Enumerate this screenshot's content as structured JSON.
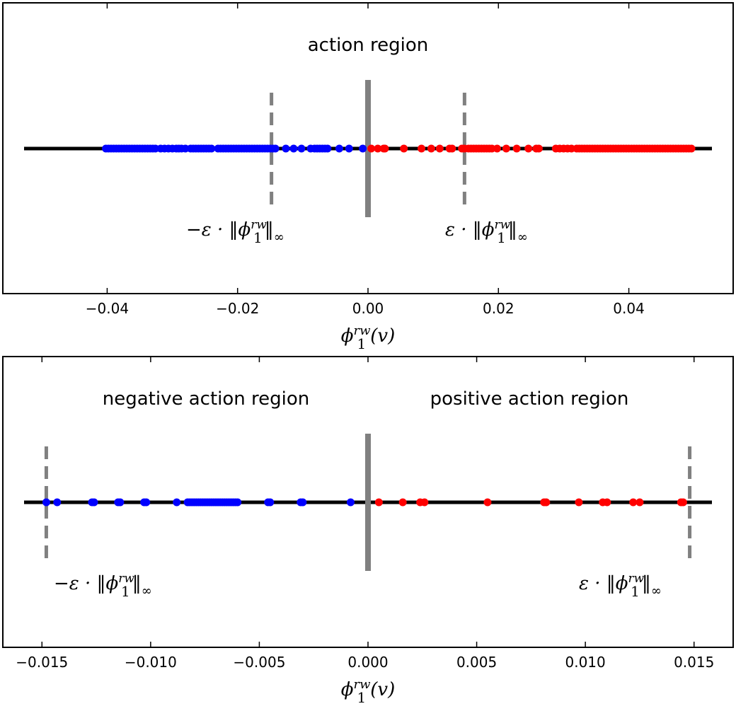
{
  "chart_data": [
    {
      "type": "scatter",
      "xlabel_main": "ϕ",
      "xlabel_sup": "rw",
      "xlabel_sub": "1",
      "xlabel_tail": "(v)",
      "xlim": [
        -0.056,
        0.056
      ],
      "xticks": [
        -0.04,
        -0.02,
        0.0,
        0.02,
        0.04
      ],
      "xtick_labels": [
        "−0.04",
        "−0.02",
        "0.00",
        "0.02",
        "0.04"
      ],
      "annotations": {
        "region_label": "action region",
        "neg_threshold_label": {
          "prefix": "−ε · ‖ϕ",
          "sub": "1",
          "sup": "rw",
          "suffix": "‖",
          "suffix_sub": "∞"
        },
        "pos_threshold_label": {
          "prefix": "ε · ‖ϕ",
          "sub": "1",
          "sup": "rw",
          "suffix": "‖",
          "suffix_sub": "∞"
        }
      },
      "threshold": 0.0148,
      "colors": {
        "negative": "#0000ff",
        "positive": "#ff0000",
        "axis_line": "#000000",
        "threshold": "#808080",
        "zero_line": "#808080"
      },
      "series": [
        {
          "color": "#0000ff",
          "x": [
            -0.0402,
            -0.0398,
            -0.0394,
            -0.039,
            -0.0386,
            -0.0382,
            -0.0378,
            -0.0374,
            -0.037,
            -0.0366,
            -0.0362,
            -0.0358,
            -0.0354,
            -0.035,
            -0.0346,
            -0.0342,
            -0.0338,
            -0.0334,
            -0.033,
            -0.0326,
            -0.0318,
            -0.0312,
            -0.0306,
            -0.03,
            -0.0294,
            -0.029,
            -0.0286,
            -0.028,
            -0.0272,
            -0.0268,
            -0.0264,
            -0.026,
            -0.0256,
            -0.0252,
            -0.0248,
            -0.0244,
            -0.024,
            -0.023,
            -0.0226,
            -0.0222,
            -0.0218,
            -0.0214,
            -0.021,
            -0.0206,
            -0.0202,
            -0.0198,
            -0.0194,
            -0.019,
            -0.0186,
            -0.0182,
            -0.0178,
            -0.0174,
            -0.017,
            -0.0166,
            -0.0162,
            -0.0158,
            -0.0154,
            -0.015,
            -0.0146,
            -0.0142,
            -0.0126,
            -0.0114,
            -0.0102,
            -0.0088,
            -0.0082,
            -0.0078,
            -0.0074,
            -0.007,
            -0.0066,
            -0.0062,
            -0.0044,
            -0.0029,
            -0.0008
          ]
        },
        {
          "color": "#ff0000",
          "x": [
            0.0005,
            0.0015,
            0.0024,
            0.0026,
            0.0055,
            0.0082,
            0.0097,
            0.011,
            0.0125,
            0.0129,
            0.0144,
            0.0148,
            0.0154,
            0.0158,
            0.0162,
            0.0166,
            0.017,
            0.0174,
            0.0178,
            0.0182,
            0.0186,
            0.019,
            0.0198,
            0.0212,
            0.0228,
            0.0246,
            0.0258,
            0.0262,
            0.0288,
            0.0294,
            0.03,
            0.0306,
            0.0312,
            0.032,
            0.0324,
            0.0328,
            0.0332,
            0.0336,
            0.034,
            0.0344,
            0.0348,
            0.0352,
            0.0356,
            0.036,
            0.0364,
            0.0368,
            0.0372,
            0.0376,
            0.038,
            0.0384,
            0.0388,
            0.0392,
            0.0396,
            0.04,
            0.0404,
            0.0408,
            0.0412,
            0.0416,
            0.042,
            0.0424,
            0.0428,
            0.0432,
            0.0436,
            0.044,
            0.0444,
            0.0448,
            0.0452,
            0.0456,
            0.046,
            0.0464,
            0.0468,
            0.0472,
            0.0476,
            0.048,
            0.0484,
            0.0488,
            0.0492,
            0.0496
          ]
        }
      ]
    },
    {
      "type": "scatter",
      "xlabel_main": "ϕ",
      "xlabel_sup": "rw",
      "xlabel_sub": "1",
      "xlabel_tail": "(v)",
      "xlim": [
        -0.0168,
        0.0168
      ],
      "xticks": [
        -0.015,
        -0.01,
        -0.005,
        0.0,
        0.005,
        0.01,
        0.015
      ],
      "xtick_labels": [
        "−0.015",
        "−0.010",
        "−0.005",
        "0.000",
        "0.005",
        "0.010",
        "0.015"
      ],
      "annotations": {
        "neg_region_label": "negative action region",
        "pos_region_label": "positive action region",
        "neg_threshold_label": {
          "prefix": "−ε · ‖ϕ",
          "sub": "1",
          "sup": "rw",
          "suffix": "‖",
          "suffix_sub": "∞"
        },
        "pos_threshold_label": {
          "prefix": "ε · ‖ϕ",
          "sub": "1",
          "sup": "rw",
          "suffix": "‖",
          "suffix_sub": "∞"
        }
      },
      "threshold": 0.0148,
      "colors": {
        "negative": "#0000ff",
        "positive": "#ff0000",
        "axis_line": "#000000",
        "threshold": "#808080",
        "zero_line": "#808080"
      },
      "series": [
        {
          "color": "#0000ff",
          "x": [
            -0.0148,
            -0.0143,
            -0.0127,
            -0.0126,
            -0.0115,
            -0.0114,
            -0.0103,
            -0.0102,
            -0.0088,
            -0.0083,
            -0.0082,
            -0.0081,
            -0.008,
            -0.0079,
            -0.0078,
            -0.0077,
            -0.0076,
            -0.0075,
            -0.0074,
            -0.0073,
            -0.0072,
            -0.0071,
            -0.007,
            -0.0069,
            -0.0068,
            -0.0067,
            -0.0066,
            -0.0065,
            -0.0064,
            -0.0063,
            -0.0062,
            -0.0061,
            -0.006,
            -0.0046,
            -0.0045,
            -0.0031,
            -0.003,
            -0.0008
          ]
        },
        {
          "color": "#ff0000",
          "x": [
            0.0005,
            0.0016,
            0.0024,
            0.0026,
            0.0055,
            0.0081,
            0.0082,
            0.0097,
            0.0108,
            0.011,
            0.0122,
            0.0125,
            0.0144,
            0.0145
          ]
        }
      ]
    }
  ]
}
